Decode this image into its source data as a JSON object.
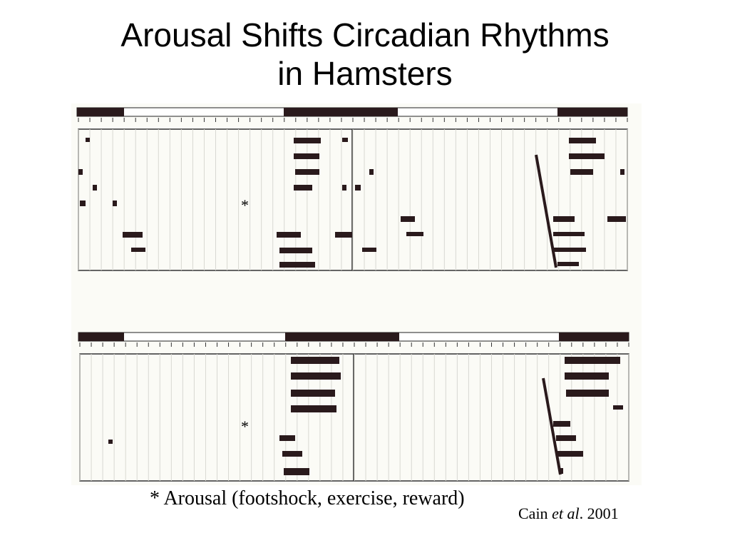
{
  "slide": {
    "title_line1": "Arousal Shifts Circadian Rhythms",
    "title_line2": "in Hamsters",
    "caption": "* Arousal (footshock, exercise, reward)",
    "citation_author": "Cain ",
    "citation_etal": "et al",
    "citation_year": ". 2001"
  },
  "figure": {
    "description_marker": "*",
    "panels": [
      {
        "name": "top-actogram"
      },
      {
        "name": "bottom-actogram"
      }
    ]
  }
}
